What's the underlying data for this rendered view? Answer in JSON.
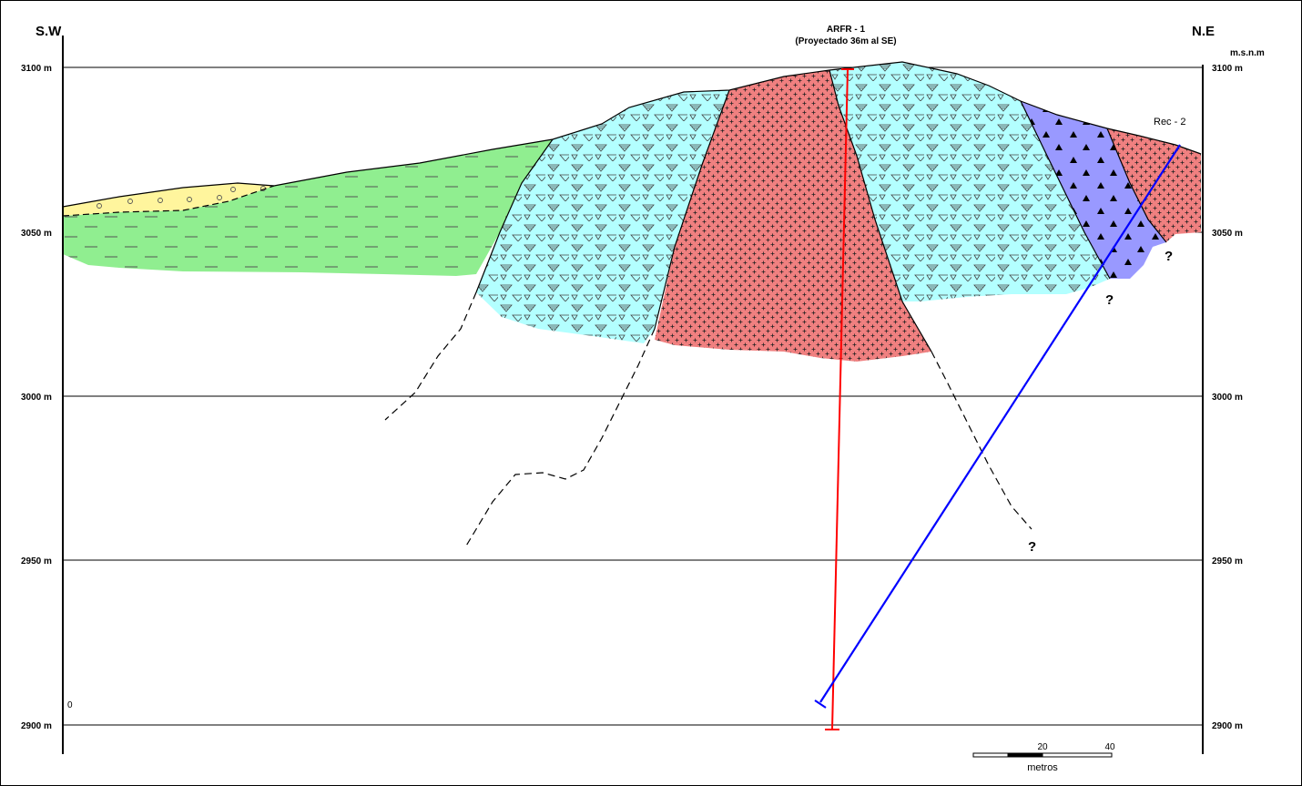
{
  "orientation": {
    "left": "S.W",
    "right": "N.E"
  },
  "datum_label": "m.s.n.m",
  "elevation_ticks": [
    {
      "value": 3100,
      "label": "3100 m"
    },
    {
      "value": 3050,
      "label": "3050 m"
    },
    {
      "value": 3000,
      "label": "3000 m"
    },
    {
      "value": 2950,
      "label": "2950 m"
    },
    {
      "value": 2900,
      "label": "2900 m"
    }
  ],
  "drillholes": [
    {
      "name": "ARFR - 1",
      "note": "(Proyectado 36m al SE)",
      "color": "#ff0000"
    },
    {
      "name": "Rec - 2",
      "note": "",
      "color": "#0000ff"
    }
  ],
  "unknown_marker": "?",
  "corner_zero": "0",
  "scale_bar": {
    "ticks": [
      "20",
      "40"
    ],
    "unit": "metros"
  },
  "units": [
    {
      "id": "gravel",
      "color": "#fff59d"
    },
    {
      "id": "lutite",
      "color": "#90ee90"
    },
    {
      "id": "tuff",
      "color": "#b3ffff"
    },
    {
      "id": "intrusive",
      "color": "#f08080"
    },
    {
      "id": "breccia",
      "color": "#9999ff"
    }
  ]
}
